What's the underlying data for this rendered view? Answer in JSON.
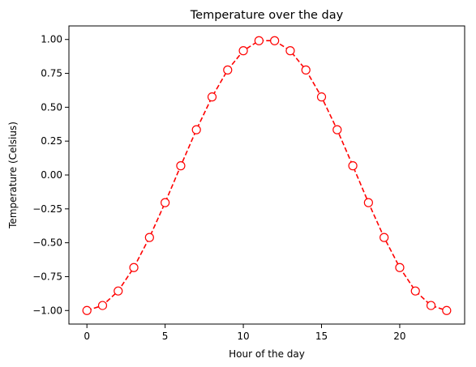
{
  "chart_data": {
    "type": "line",
    "title": "Temperature over the day",
    "xlabel": "Hour of the day",
    "ylabel": "Temperature (Celsius)",
    "xlim": [
      -1.15,
      24.15
    ],
    "ylim": [
      -1.1,
      1.1
    ],
    "xticks": [
      0,
      5,
      10,
      15,
      20
    ],
    "xtick_labels": [
      "0",
      "5",
      "10",
      "15",
      "20"
    ],
    "yticks": [
      -1.0,
      -0.75,
      -0.5,
      -0.25,
      0.0,
      0.25,
      0.5,
      0.75,
      1.0
    ],
    "ytick_labels": [
      "−1.00",
      "−0.75",
      "−0.50",
      "−0.25",
      "0.00",
      "0.25",
      "0.50",
      "0.75",
      "1.00"
    ],
    "grid": false,
    "legend": "none",
    "series": [
      {
        "color": "#ff0000",
        "line_style": "dashed",
        "marker": "open-circle",
        "x": [
          0,
          1,
          2,
          3,
          4,
          5,
          6,
          7,
          8,
          9,
          10,
          11,
          12,
          13,
          14,
          15,
          16,
          17,
          18,
          19,
          20,
          21,
          22,
          23
        ],
        "y": [
          -1.0,
          -0.963,
          -0.856,
          -0.683,
          -0.461,
          -0.204,
          0.068,
          0.334,
          0.576,
          0.775,
          0.917,
          0.991,
          0.991,
          0.917,
          0.775,
          0.576,
          0.334,
          0.068,
          -0.204,
          -0.461,
          -0.683,
          -0.856,
          -0.963,
          -1.0
        ]
      }
    ]
  }
}
